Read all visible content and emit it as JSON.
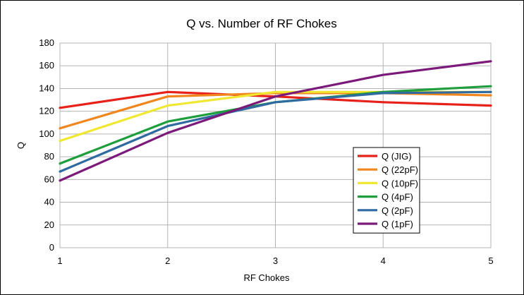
{
  "chart_data": {
    "type": "line",
    "title": "Q vs. Number of RF Chokes",
    "xlabel": "RF Chokes",
    "ylabel": "Q",
    "x": [
      1,
      2,
      3,
      4,
      5
    ],
    "xlim": [
      1,
      5
    ],
    "ylim": [
      0,
      180
    ],
    "xticks": [
      1,
      2,
      3,
      4,
      5
    ],
    "yticks": [
      0,
      20,
      40,
      60,
      80,
      100,
      120,
      140,
      160,
      180
    ],
    "grid": true,
    "legend_position": "right",
    "series": [
      {
        "name": "Q (JIG)",
        "color": "#e8201a",
        "values": [
          123,
          137,
          133,
          128,
          125
        ]
      },
      {
        "name": "Q (22pF)",
        "color": "#f0861e",
        "values": [
          105,
          133,
          136,
          136,
          134
        ]
      },
      {
        "name": "Q (10pF)",
        "color": "#f0e830",
        "values": [
          94,
          125,
          137,
          137,
          137
        ]
      },
      {
        "name": "Q (4pF)",
        "color": "#1e9e3c",
        "values": [
          74,
          111,
          128,
          137,
          142
        ]
      },
      {
        "name": "Q (2pF)",
        "color": "#2f6aa0",
        "values": [
          67,
          107,
          128,
          136,
          137
        ]
      },
      {
        "name": "Q (1pF)",
        "color": "#7b1a7a",
        "values": [
          59,
          101,
          133,
          152,
          164
        ]
      }
    ]
  }
}
